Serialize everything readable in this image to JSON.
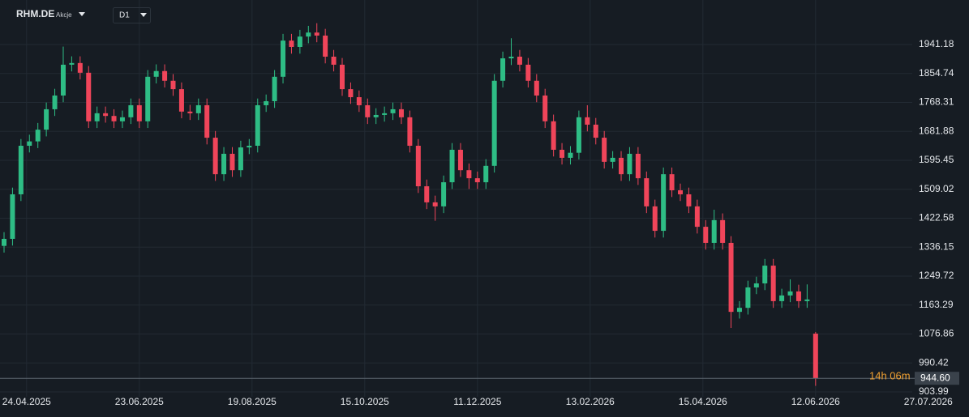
{
  "chart_data": {
    "type": "candlestick",
    "symbol": "RHM.DE",
    "instrument_type": "Akcje",
    "timeframe": "D1",
    "up_color": "#2ebd85",
    "down_color": "#f0455a",
    "x": [
      0,
      3,
      6,
      9,
      12,
      15,
      18,
      21,
      24,
      27,
      30,
      33,
      36,
      39,
      42,
      45,
      48,
      51,
      54,
      57,
      60,
      63,
      66,
      69,
      72,
      75,
      78,
      81,
      84,
      87,
      90,
      93,
      96,
      99,
      102,
      105,
      108,
      111,
      114,
      117,
      120,
      123,
      126,
      129,
      132,
      135,
      138,
      141,
      144,
      147,
      150,
      153,
      156,
      159,
      162,
      165,
      168,
      171,
      174,
      177,
      180,
      183,
      186,
      189,
      192,
      195,
      198,
      201,
      204,
      207,
      210,
      213,
      216,
      219,
      222,
      225,
      228,
      231,
      234,
      237,
      240,
      243,
      246,
      249,
      252,
      255,
      258,
      261,
      264,
      267,
      270,
      273,
      276,
      279,
      282,
      285,
      288
    ],
    "open": [
      1340,
      1361,
      1494,
      1639,
      1652,
      1687,
      1748,
      1789,
      1881,
      1886,
      1857,
      1712,
      1736,
      1728,
      1712,
      1724,
      1760,
      1712,
      1845,
      1862,
      1833,
      1808,
      1741,
      1736,
      1760,
      1663,
      1554,
      1615,
      1566,
      1634,
      1639,
      1760,
      1772,
      1845,
      1953,
      1934,
      1965,
      1977,
      1968,
      1905,
      1881,
      1808,
      1784,
      1760,
      1724,
      1731,
      1736,
      1748,
      1724,
      1639,
      1518,
      1470,
      1458,
      1530,
      1627,
      1566,
      1542,
      1530,
      1579,
      1833,
      1900,
      1905,
      1881,
      1833,
      1789,
      1712,
      1627,
      1603,
      1618,
      1724,
      1702,
      1663,
      1591,
      1603,
      1554,
      1615,
      1542,
      1458,
      1385,
      1554,
      1506,
      1494,
      1458,
      1397,
      1349,
      1417,
      1349,
      1143,
      1155,
      1216,
      1228,
      1281,
      1175,
      1192,
      1204,
      1175,
      1078
    ],
    "high": [
      1381,
      1514,
      1659,
      1672,
      1707,
      1768,
      1809,
      1935,
      1906,
      1906,
      1877,
      1756,
      1756,
      1748,
      1744,
      1780,
      1780,
      1865,
      1882,
      1882,
      1853,
      1828,
      1761,
      1780,
      1780,
      1683,
      1635,
      1635,
      1654,
      1659,
      1780,
      1792,
      1865,
      1973,
      1973,
      1985,
      1997,
      2005,
      1988,
      1925,
      1901,
      1828,
      1804,
      1780,
      1751,
      1756,
      1768,
      1768,
      1744,
      1659,
      1538,
      1490,
      1550,
      1647,
      1647,
      1586,
      1562,
      1599,
      1853,
      1920,
      1960,
      1925,
      1901,
      1853,
      1809,
      1732,
      1647,
      1638,
      1744,
      1760,
      1722,
      1683,
      1623,
      1623,
      1635,
      1635,
      1562,
      1478,
      1574,
      1574,
      1526,
      1514,
      1478,
      1417,
      1448,
      1437,
      1369,
      1175,
      1236,
      1248,
      1301,
      1301,
      1212,
      1240,
      1224,
      1225,
      1083
    ],
    "low": [
      1320,
      1341,
      1474,
      1619,
      1632,
      1667,
      1728,
      1769,
      1861,
      1837,
      1692,
      1692,
      1708,
      1692,
      1692,
      1704,
      1692,
      1692,
      1825,
      1813,
      1788,
      1721,
      1716,
      1716,
      1643,
      1534,
      1534,
      1546,
      1546,
      1614,
      1619,
      1740,
      1752,
      1825,
      1914,
      1914,
      1945,
      1948,
      1885,
      1861,
      1788,
      1764,
      1740,
      1704,
      1704,
      1711,
      1716,
      1704,
      1619,
      1498,
      1450,
      1415,
      1438,
      1510,
      1546,
      1510,
      1510,
      1510,
      1559,
      1813,
      1880,
      1861,
      1813,
      1769,
      1692,
      1607,
      1583,
      1583,
      1598,
      1682,
      1643,
      1571,
      1571,
      1534,
      1534,
      1522,
      1438,
      1365,
      1365,
      1486,
      1474,
      1438,
      1377,
      1329,
      1329,
      1329,
      1095,
      1123,
      1135,
      1196,
      1208,
      1155,
      1155,
      1172,
      1155,
      1155,
      922
    ],
    "close": [
      1361,
      1494,
      1639,
      1652,
      1687,
      1748,
      1789,
      1881,
      1886,
      1857,
      1712,
      1736,
      1728,
      1712,
      1724,
      1760,
      1712,
      1845,
      1862,
      1833,
      1808,
      1741,
      1736,
      1760,
      1663,
      1554,
      1615,
      1566,
      1634,
      1639,
      1760,
      1772,
      1845,
      1953,
      1934,
      1965,
      1977,
      1968,
      1905,
      1881,
      1808,
      1784,
      1760,
      1724,
      1731,
      1736,
      1748,
      1724,
      1639,
      1518,
      1470,
      1458,
      1530,
      1627,
      1566,
      1542,
      1530,
      1579,
      1833,
      1900,
      1905,
      1881,
      1833,
      1789,
      1712,
      1627,
      1603,
      1618,
      1724,
      1702,
      1663,
      1591,
      1603,
      1554,
      1615,
      1542,
      1458,
      1385,
      1554,
      1506,
      1494,
      1458,
      1397,
      1349,
      1417,
      1349,
      1143,
      1155,
      1216,
      1228,
      1281,
      1175,
      1192,
      1204,
      1175,
      1180,
      944.6
    ],
    "xlim": [
      -1.44,
      322.3
    ],
    "xticks": [
      {
        "value": 8,
        "label": "24.04.2025"
      },
      {
        "value": 48,
        "label": "23.06.2025"
      },
      {
        "value": 88,
        "label": "19.08.2025"
      },
      {
        "value": 128,
        "label": "15.10.2025"
      },
      {
        "value": 168,
        "label": "11.12.2025"
      },
      {
        "value": 208,
        "label": "13.02.2026"
      },
      {
        "value": 248,
        "label": "15.04.2026"
      },
      {
        "value": 288,
        "label": "12.06.2026"
      },
      {
        "value": 328,
        "label": "27.07.2026"
      }
    ],
    "ylim": [
      889.5,
      2074.2
    ],
    "yticks": [
      1941.18,
      1854.74,
      1768.31,
      1681.88,
      1595.45,
      1509.02,
      1422.58,
      1336.15,
      1249.72,
      1163.29,
      1076.86,
      990.42,
      903.99
    ],
    "grid": true,
    "last_price": {
      "value": 944.6,
      "label": "944.60"
    },
    "countdown": "14h 06m"
  }
}
